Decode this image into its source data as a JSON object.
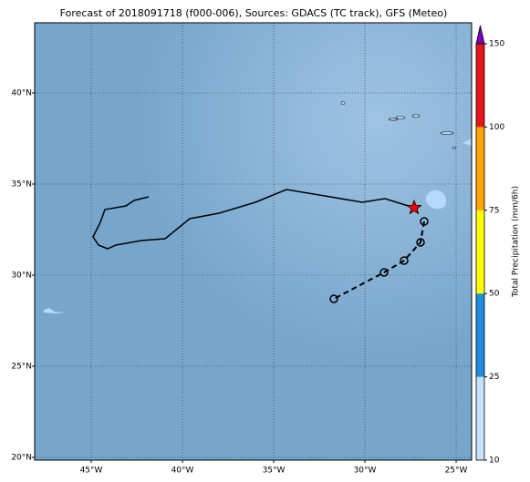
{
  "chart_data": {
    "type": "map",
    "title": "Forecast of 2018091718 (f000-006), Sources: GDACS (TC track), GFS (Meteo)",
    "xlim": [
      -48.1,
      -24.15
    ],
    "ylim": [
      19.85,
      43.85
    ],
    "xticks": [
      {
        "value": -45,
        "label": "45°W"
      },
      {
        "value": -40,
        "label": "40°W"
      },
      {
        "value": -35,
        "label": "35°W"
      },
      {
        "value": -30,
        "label": "30°W"
      },
      {
        "value": -25,
        "label": "25°W"
      }
    ],
    "yticks": [
      {
        "value": 20,
        "label": "20°N"
      },
      {
        "value": 25,
        "label": "25°N"
      },
      {
        "value": 30,
        "label": "30°N"
      },
      {
        "value": 35,
        "label": "35°N"
      },
      {
        "value": 40,
        "label": "40°N"
      }
    ],
    "grid": true,
    "track": {
      "color": "#000000",
      "lon": [
        -41.85,
        -42.65,
        -43.1,
        -44.25,
        -44.5,
        -44.9,
        -44.6,
        -44.1,
        -43.65,
        -42.25,
        -40.95,
        -39.6,
        -38.0,
        -36.0,
        -34.3,
        -32.2,
        -30.15,
        -28.9,
        -27.3
      ],
      "lat": [
        34.3,
        34.1,
        33.8,
        33.6,
        32.9,
        32.1,
        31.65,
        31.45,
        31.65,
        31.9,
        32.0,
        33.1,
        33.4,
        34.0,
        34.7,
        34.35,
        34.0,
        34.2,
        33.7
      ]
    },
    "current": {
      "lon": -27.3,
      "lat": 33.7,
      "color": "#ff0000"
    },
    "forecast": {
      "color": "#000000",
      "lon": [
        -26.75,
        -26.95,
        -27.85,
        -28.95,
        -31.7
      ],
      "lat": [
        32.95,
        31.8,
        30.8,
        30.15,
        28.7
      ]
    },
    "colorbar": {
      "label": "Total Precipitation (mm/6h)",
      "ticks": [
        10,
        25,
        50,
        75,
        100,
        150
      ],
      "colors": [
        "#c6e2ff",
        "#1e8ce0",
        "#ffff00",
        "#ffa500",
        "#e8141c"
      ],
      "extend_color": "#7a00c8"
    }
  }
}
